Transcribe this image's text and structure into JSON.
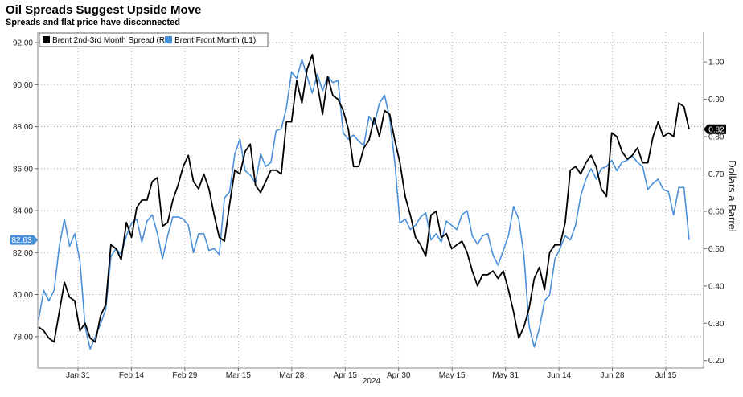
{
  "title": "Oil Spreads Suggest Upside Move",
  "subtitle": "Spreads and flat price have disconnected",
  "chart_data": {
    "type": "line",
    "xlabel": "2024",
    "y2label": "Dollars a Barrel",
    "ylim_left": [
      76.5,
      92.5
    ],
    "ylim_right": [
      0.18,
      1.08
    ],
    "yticks_left": [
      "92.00",
      "90.00",
      "88.00",
      "86.00",
      "84.00",
      "82.00",
      "80.00",
      "78.00"
    ],
    "yticks_right": [
      "1.00",
      "0.90",
      "0.80",
      "0.70",
      "0.60",
      "0.50",
      "0.40",
      "0.30",
      "0.20"
    ],
    "xticks": [
      "Jan 31",
      "Feb 14",
      "Feb 29",
      "Mar 15",
      "Mar 28",
      "Apr 15",
      "Apr 30",
      "May 15",
      "May 31",
      "Jun 14",
      "Jun 28",
      "Jul 15"
    ],
    "grid": true,
    "legend_position": "top-left",
    "series": [
      {
        "name": "Brent 2nd-3rd Month Spread (R1)",
        "axis": "right",
        "color": "#000000",
        "last_value_label": "0.82",
        "values": [
          0.29,
          0.28,
          0.26,
          0.25,
          0.33,
          0.41,
          0.37,
          0.36,
          0.28,
          0.3,
          0.26,
          0.25,
          0.32,
          0.35,
          0.51,
          0.5,
          0.47,
          0.57,
          0.53,
          0.61,
          0.63,
          0.63,
          0.68,
          0.69,
          0.56,
          0.57,
          0.63,
          0.67,
          0.72,
          0.75,
          0.68,
          0.66,
          0.7,
          0.66,
          0.59,
          0.53,
          0.52,
          0.62,
          0.71,
          0.7,
          0.76,
          0.78,
          0.67,
          0.65,
          0.68,
          0.71,
          0.71,
          0.7,
          0.84,
          0.84,
          0.95,
          0.89,
          0.98,
          1.02,
          0.94,
          0.86,
          0.96,
          0.91,
          0.9,
          0.87,
          0.82,
          0.72,
          0.72,
          0.77,
          0.79,
          0.85,
          0.8,
          0.87,
          0.86,
          0.79,
          0.73,
          0.64,
          0.59,
          0.53,
          0.51,
          0.48,
          0.59,
          0.6,
          0.53,
          0.54,
          0.5,
          0.51,
          0.52,
          0.49,
          0.44,
          0.4,
          0.43,
          0.43,
          0.44,
          0.42,
          0.44,
          0.39,
          0.33,
          0.26,
          0.29,
          0.34,
          0.42,
          0.45,
          0.39,
          0.49,
          0.51,
          0.51,
          0.57,
          0.71,
          0.72,
          0.7,
          0.73,
          0.75,
          0.72,
          0.66,
          0.64,
          0.81,
          0.8,
          0.76,
          0.74,
          0.75,
          0.77,
          0.73,
          0.73,
          0.8,
          0.84,
          0.8,
          0.81,
          0.8,
          0.89,
          0.88,
          0.82
        ]
      },
      {
        "name": "Brent Front Month (L1)",
        "axis": "left",
        "color": "#4a90d9",
        "last_value_label": "82.63",
        "values": [
          78.8,
          80.2,
          79.7,
          80.2,
          82.3,
          83.6,
          82.3,
          82.9,
          81.6,
          78.5,
          77.4,
          78.0,
          78.6,
          79.3,
          81.8,
          82.2,
          81.9,
          82.8,
          83.4,
          83.6,
          82.5,
          83.5,
          83.8,
          82.9,
          81.7,
          82.8,
          83.7,
          83.7,
          83.6,
          83.3,
          82.0,
          82.9,
          82.9,
          82.1,
          82.2,
          81.9,
          84.6,
          84.9,
          86.7,
          87.4,
          85.9,
          85.7,
          85.3,
          86.7,
          86.1,
          86.3,
          87.8,
          87.9,
          88.9,
          90.6,
          90.3,
          91.2,
          90.4,
          89.6,
          90.5,
          89.7,
          90.4,
          90.1,
          90.2,
          87.7,
          87.4,
          87.6,
          87.3,
          87.1,
          88.5,
          88.1,
          89.1,
          89.5,
          88.4,
          86.3,
          83.4,
          83.6,
          83.1,
          83.3,
          83.7,
          83.9,
          82.6,
          82.9,
          82.5,
          83.5,
          83.3,
          83.1,
          83.8,
          84.0,
          82.8,
          82.4,
          82.8,
          82.9,
          81.9,
          81.4,
          82.1,
          82.8,
          84.2,
          83.6,
          81.9,
          78.5,
          77.5,
          78.4,
          79.7,
          80.0,
          81.7,
          82.2,
          82.8,
          82.6,
          83.3,
          84.7,
          85.5,
          86.0,
          85.5,
          86.0,
          86.1,
          86.4,
          85.9,
          86.3,
          86.4,
          86.6,
          86.3,
          86.1,
          85.0,
          85.3,
          85.5,
          85.0,
          84.9,
          83.8,
          85.1,
          85.1,
          82.6
        ]
      }
    ]
  }
}
